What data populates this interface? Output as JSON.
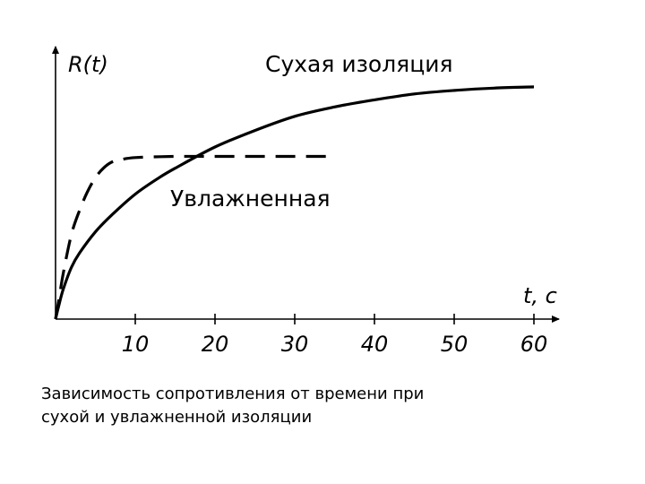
{
  "chart_data": {
    "type": "line",
    "xlabel": "t, c",
    "ylabel": "R(t)",
    "xlim": [
      0,
      65
    ],
    "ylim": [
      0,
      1.1
    ],
    "x_ticks": [
      10,
      20,
      30,
      40,
      50,
      60
    ],
    "x_tick_labels": [
      "10",
      "20",
      "30",
      "40",
      "50",
      "60"
    ],
    "series": [
      {
        "name": "Сухая изоляция",
        "style": "solid",
        "color": "#000000",
        "x": [
          0,
          0.5,
          1,
          2,
          3,
          5,
          7,
          10,
          13,
          15,
          20,
          25,
          30,
          35,
          40,
          45,
          50,
          55,
          60
        ],
        "y": [
          0,
          0.07,
          0.13,
          0.22,
          0.28,
          0.37,
          0.44,
          0.53,
          0.6,
          0.64,
          0.73,
          0.8,
          0.86,
          0.9,
          0.93,
          0.955,
          0.97,
          0.98,
          0.985
        ]
      },
      {
        "name": "Увлажненная",
        "style": "dashed",
        "color": "#000000",
        "x": [
          0,
          0.5,
          1,
          2,
          3,
          4,
          5,
          6,
          7,
          8,
          10,
          15,
          20,
          25,
          30,
          35
        ],
        "y": [
          0,
          0.1,
          0.2,
          0.36,
          0.46,
          0.54,
          0.6,
          0.64,
          0.665,
          0.675,
          0.685,
          0.69,
          0.69,
          0.69,
          0.69,
          0.69
        ]
      }
    ]
  },
  "caption": {
    "line1": "Зависимость сопротивления от времени при",
    "line2": "сухой и увлажненной изоляции"
  }
}
